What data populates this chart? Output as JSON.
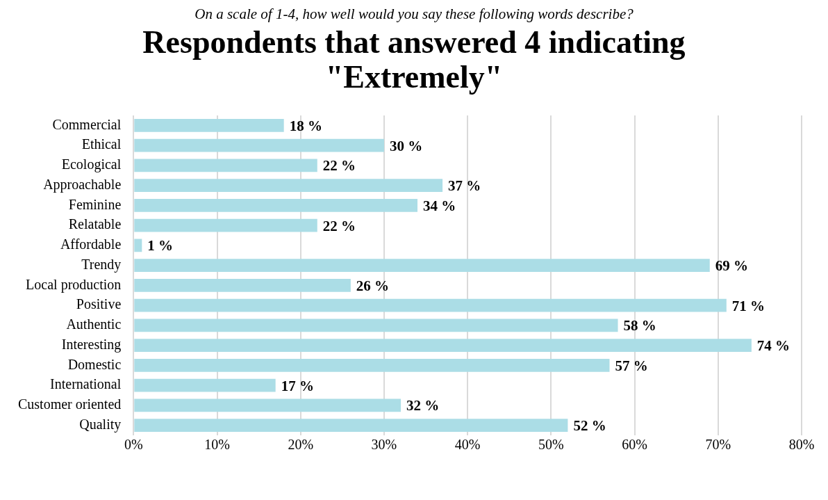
{
  "chart_data": {
    "type": "bar",
    "orientation": "horizontal",
    "subtitle": "On a scale of 1-4, how well would you say these following words describe?",
    "title": "Respondents that answered 4 indicating \"Extremely\"",
    "categories": [
      "Commercial",
      "Ethical",
      "Ecological",
      "Approachable",
      "Feminine",
      "Relatable",
      "Affordable",
      "Trendy",
      "Local production",
      "Positive",
      "Authentic",
      "Interesting",
      "Domestic",
      "International",
      "Customer oriented",
      "Quality"
    ],
    "values": [
      18,
      30,
      22,
      37,
      34,
      22,
      1,
      69,
      26,
      71,
      58,
      74,
      57,
      17,
      32,
      52
    ],
    "value_labels": [
      "18 %",
      "30 %",
      "22 %",
      "37 %",
      "34 %",
      "22 %",
      "1 %",
      "69 %",
      "26 %",
      "71 %",
      "58 %",
      "74 %",
      "57 %",
      "17 %",
      "32 %",
      "52 %"
    ],
    "color": "#abdde6",
    "xlim": [
      0,
      80
    ],
    "xticks": [
      {
        "value": 0,
        "label": "0%"
      },
      {
        "value": 10,
        "label": "10%"
      },
      {
        "value": 20,
        "label": "20%"
      },
      {
        "value": 30,
        "label": "30%"
      },
      {
        "value": 40,
        "label": "40%"
      },
      {
        "value": 50,
        "label": "50%"
      },
      {
        "value": 60,
        "label": "60%"
      },
      {
        "value": 70,
        "label": "70%"
      },
      {
        "value": 80,
        "label": "80%"
      }
    ],
    "grid": "x"
  }
}
